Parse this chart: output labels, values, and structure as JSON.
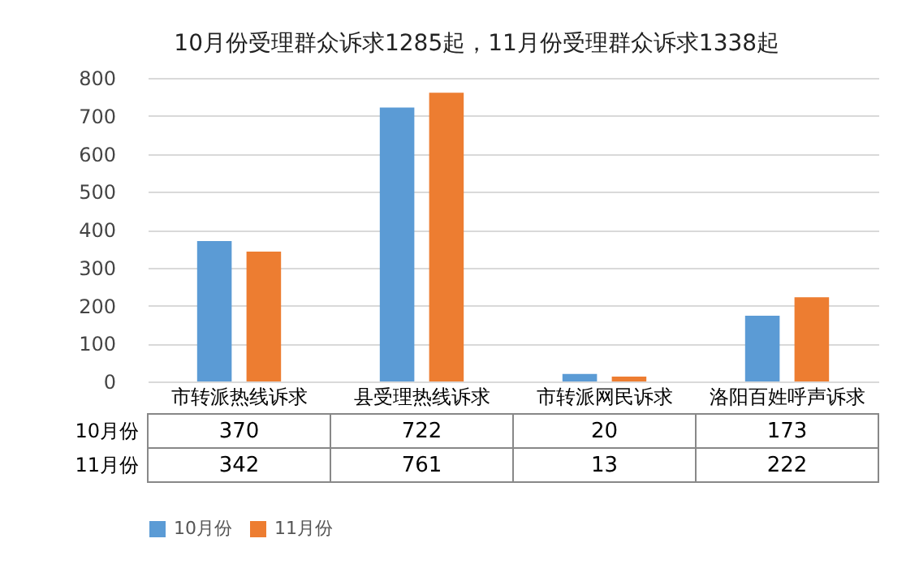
{
  "chart_data": {
    "type": "bar",
    "title": "10月份受理群众诉求1285起，11月份受理群众诉求1338起",
    "categories": [
      "市转派热线诉求",
      "县受理热线诉求",
      "市转派网民诉求",
      "洛阳百姓呼声诉求"
    ],
    "series": [
      {
        "name": "10月份",
        "color": "#5b9bd5",
        "values": [
          370,
          722,
          20,
          173
        ]
      },
      {
        "name": "11月份",
        "color": "#ed7d31",
        "values": [
          342,
          761,
          13,
          222
        ]
      }
    ],
    "ylim": [
      0,
      800
    ],
    "yticks": [
      0,
      100,
      200,
      300,
      400,
      500,
      600,
      700,
      800
    ],
    "grid": "y",
    "legend": "bottom",
    "data_labels": true
  }
}
